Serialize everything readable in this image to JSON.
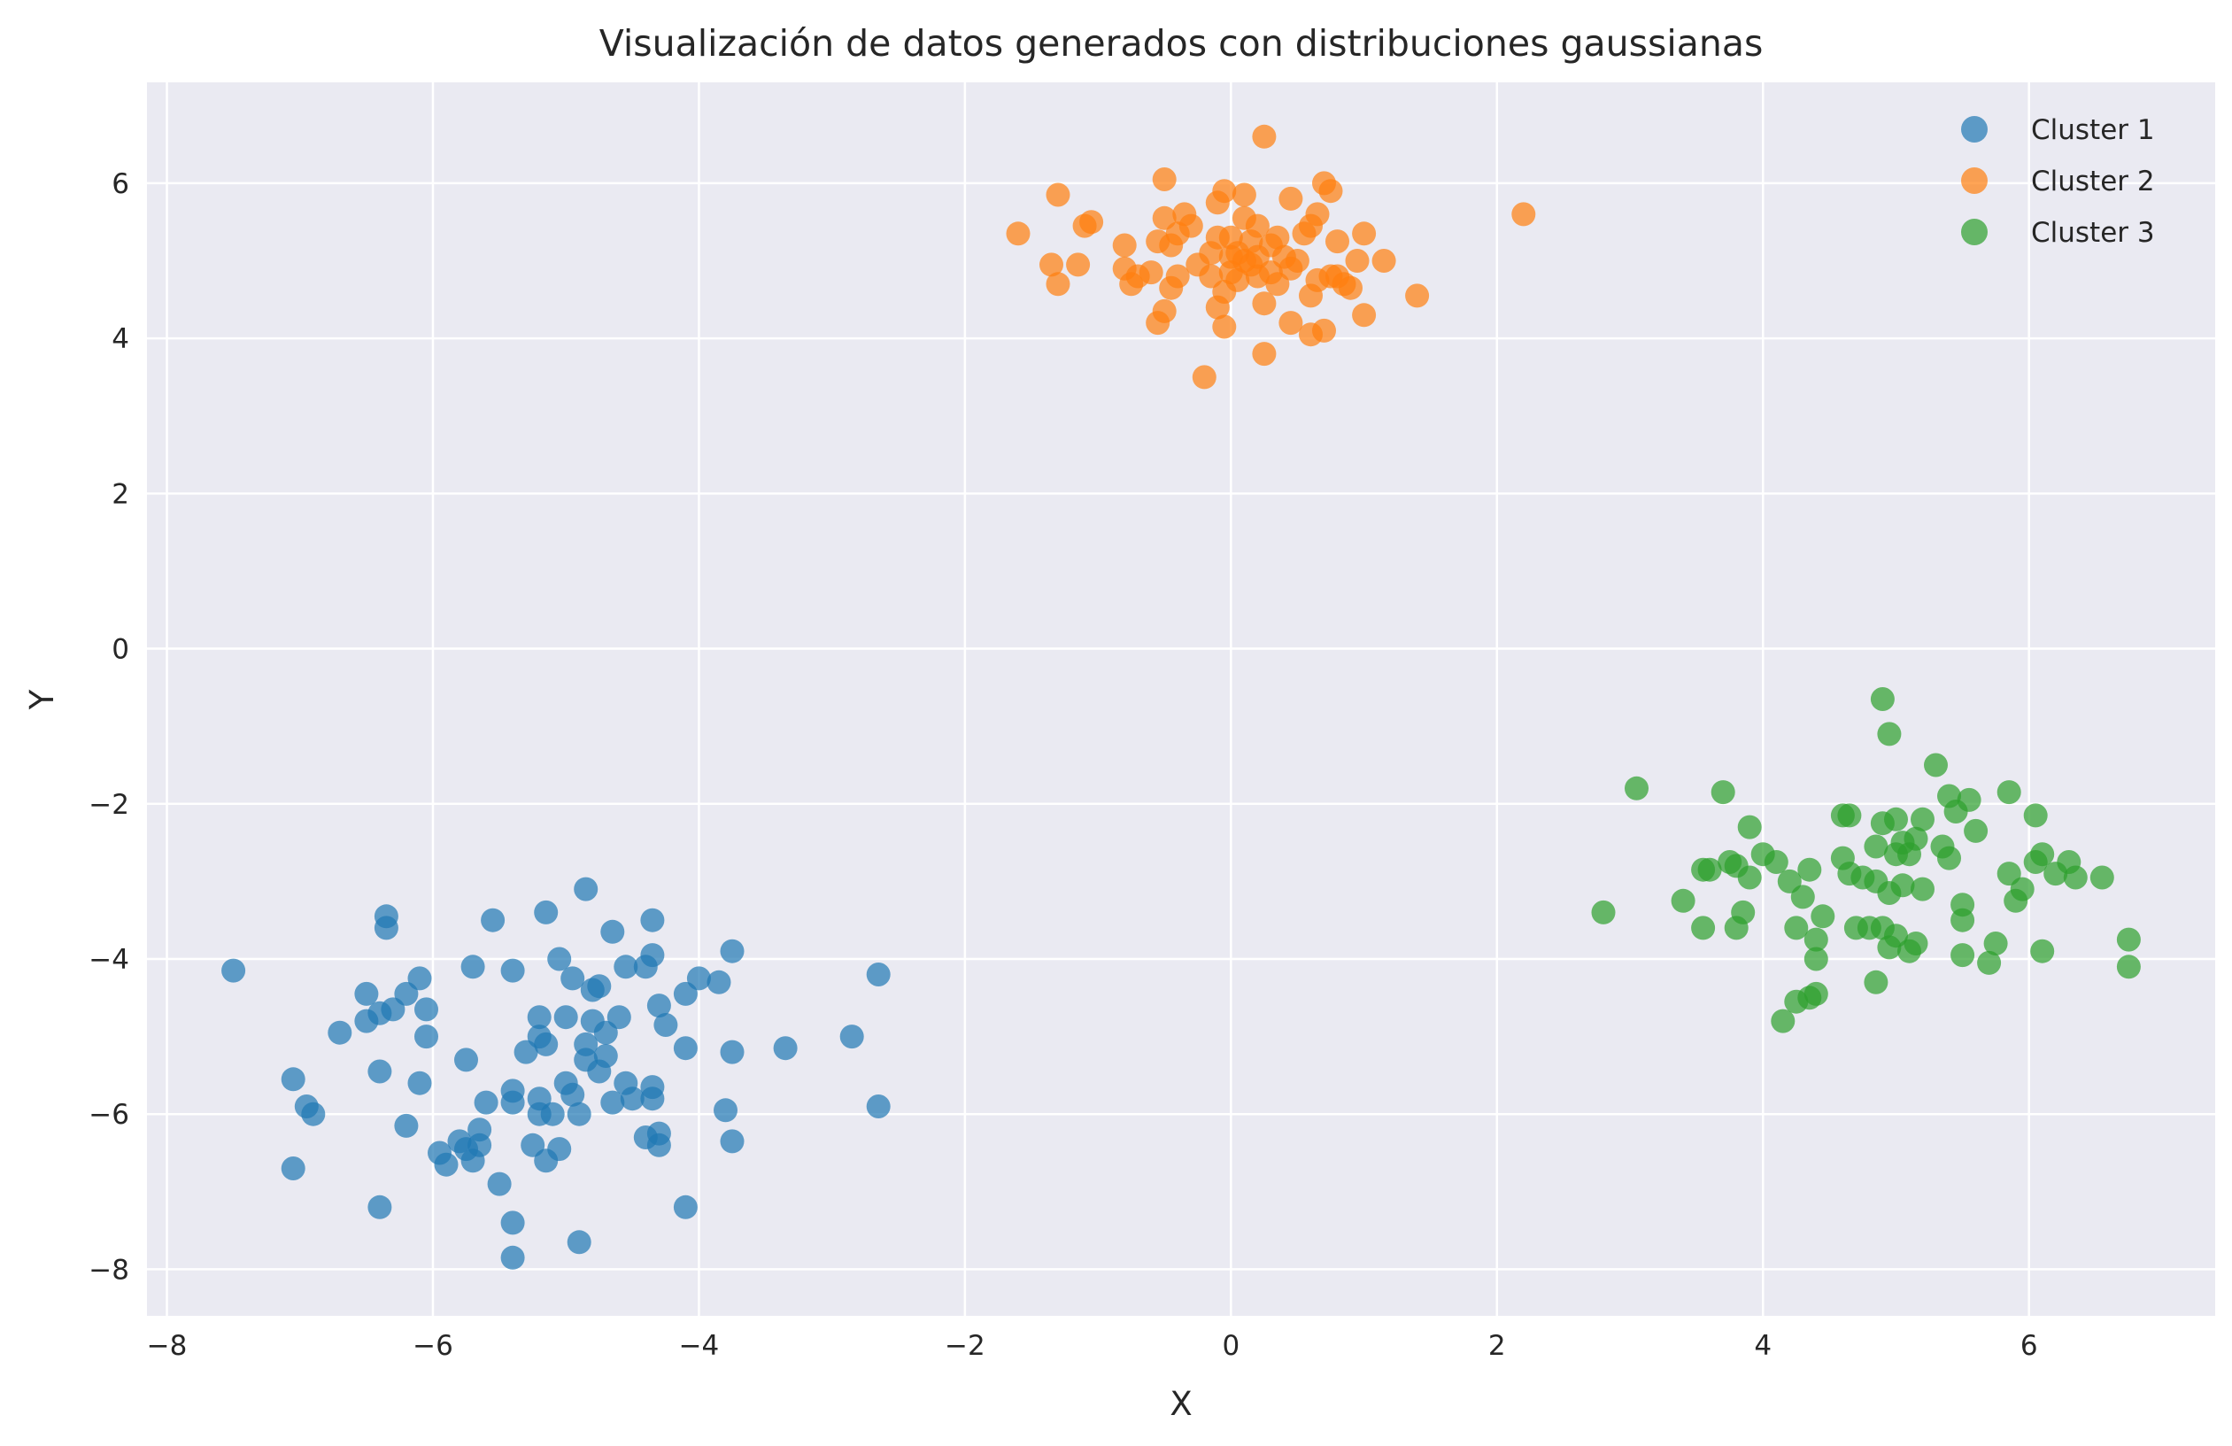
{
  "chart_data": {
    "type": "scatter",
    "title": "Visualización de datos generados con distribuciones gaussianas",
    "xlabel": "X",
    "ylabel": "Y",
    "xlim": [
      -8.15,
      7.4
    ],
    "ylim": [
      -8.6,
      7.3
    ],
    "xticks": [
      -8,
      -6,
      -4,
      -2,
      0,
      2,
      4,
      6
    ],
    "yticks": [
      -8,
      -6,
      -4,
      -2,
      0,
      2,
      4,
      6
    ],
    "xtick_labels": [
      "−8",
      "−6",
      "−4",
      "−2",
      "0",
      "2",
      "4",
      "6"
    ],
    "ytick_labels": [
      "−8",
      "−6",
      "−4",
      "−2",
      "0",
      "2",
      "4",
      "6"
    ],
    "grid": true,
    "legend_position": "top-right",
    "background_color": "#eaeaf2",
    "series": [
      {
        "name": "Cluster 1",
        "color": "#1f77b4",
        "points": [
          [
            -7.5,
            -4.15
          ],
          [
            -7.05,
            -5.55
          ],
          [
            -7.05,
            -6.7
          ],
          [
            -6.95,
            -5.9
          ],
          [
            -6.9,
            -6.0
          ],
          [
            -6.7,
            -4.95
          ],
          [
            -6.5,
            -4.45
          ],
          [
            -6.5,
            -4.8
          ],
          [
            -6.4,
            -4.7
          ],
          [
            -6.4,
            -5.45
          ],
          [
            -6.4,
            -7.2
          ],
          [
            -6.35,
            -3.45
          ],
          [
            -6.35,
            -3.6
          ],
          [
            -6.3,
            -4.65
          ],
          [
            -6.2,
            -6.15
          ],
          [
            -6.2,
            -4.45
          ],
          [
            -6.1,
            -4.25
          ],
          [
            -6.1,
            -5.6
          ],
          [
            -6.05,
            -4.65
          ],
          [
            -6.05,
            -5.0
          ],
          [
            -5.95,
            -6.5
          ],
          [
            -5.9,
            -6.65
          ],
          [
            -5.8,
            -6.35
          ],
          [
            -5.75,
            -6.45
          ],
          [
            -5.75,
            -5.3
          ],
          [
            -5.7,
            -4.1
          ],
          [
            -5.7,
            -6.6
          ],
          [
            -5.65,
            -6.2
          ],
          [
            -5.65,
            -6.4
          ],
          [
            -5.6,
            -5.85
          ],
          [
            -5.55,
            -3.5
          ],
          [
            -5.5,
            -6.9
          ],
          [
            -5.4,
            -4.15
          ],
          [
            -5.4,
            -5.7
          ],
          [
            -5.4,
            -5.85
          ],
          [
            -5.4,
            -7.4
          ],
          [
            -5.4,
            -7.85
          ],
          [
            -5.3,
            -5.2
          ],
          [
            -5.25,
            -6.4
          ],
          [
            -5.2,
            -5.0
          ],
          [
            -5.2,
            -4.75
          ],
          [
            -5.2,
            -5.8
          ],
          [
            -5.2,
            -6.0
          ],
          [
            -5.15,
            -3.4
          ],
          [
            -5.15,
            -5.1
          ],
          [
            -5.15,
            -6.6
          ],
          [
            -5.1,
            -6.0
          ],
          [
            -5.05,
            -4.0
          ],
          [
            -5.05,
            -6.45
          ],
          [
            -5.0,
            -4.75
          ],
          [
            -5.0,
            -5.6
          ],
          [
            -4.95,
            -5.75
          ],
          [
            -4.95,
            -4.25
          ],
          [
            -4.9,
            -7.65
          ],
          [
            -4.9,
            -6.0
          ],
          [
            -4.85,
            -3.1
          ],
          [
            -4.85,
            -5.3
          ],
          [
            -4.85,
            -5.1
          ],
          [
            -4.8,
            -4.8
          ],
          [
            -4.8,
            -4.4
          ],
          [
            -4.75,
            -5.45
          ],
          [
            -4.75,
            -4.35
          ],
          [
            -4.7,
            -4.95
          ],
          [
            -4.7,
            -5.25
          ],
          [
            -4.65,
            -3.65
          ],
          [
            -4.65,
            -5.85
          ],
          [
            -4.6,
            -4.75
          ],
          [
            -4.55,
            -4.1
          ],
          [
            -4.55,
            -5.6
          ],
          [
            -4.5,
            -5.8
          ],
          [
            -4.4,
            -6.3
          ],
          [
            -4.4,
            -4.1
          ],
          [
            -4.35,
            -3.5
          ],
          [
            -4.35,
            -3.95
          ],
          [
            -4.35,
            -5.65
          ],
          [
            -4.35,
            -5.8
          ],
          [
            -4.3,
            -6.25
          ],
          [
            -4.3,
            -6.4
          ],
          [
            -4.3,
            -4.6
          ],
          [
            -4.25,
            -4.85
          ],
          [
            -4.1,
            -4.45
          ],
          [
            -4.1,
            -5.15
          ],
          [
            -4.1,
            -7.2
          ],
          [
            -4.0,
            -4.25
          ],
          [
            -3.85,
            -4.3
          ],
          [
            -3.8,
            -5.95
          ],
          [
            -3.75,
            -3.9
          ],
          [
            -3.75,
            -5.2
          ],
          [
            -3.75,
            -6.35
          ],
          [
            -3.35,
            -5.15
          ],
          [
            -2.85,
            -5.0
          ],
          [
            -2.65,
            -4.2
          ],
          [
            -2.65,
            -5.9
          ]
        ]
      },
      {
        "name": "Cluster 2",
        "color": "#ff7f0e",
        "points": [
          [
            -1.6,
            5.35
          ],
          [
            -1.35,
            4.95
          ],
          [
            -1.3,
            4.7
          ],
          [
            -1.3,
            5.85
          ],
          [
            -1.15,
            4.95
          ],
          [
            -1.1,
            5.45
          ],
          [
            -1.05,
            5.5
          ],
          [
            -0.8,
            5.2
          ],
          [
            -0.8,
            4.9
          ],
          [
            -0.75,
            4.7
          ],
          [
            -0.7,
            4.8
          ],
          [
            -0.6,
            4.85
          ],
          [
            -0.55,
            4.2
          ],
          [
            -0.55,
            5.25
          ],
          [
            -0.5,
            4.35
          ],
          [
            -0.5,
            6.05
          ],
          [
            -0.5,
            5.55
          ],
          [
            -0.45,
            4.65
          ],
          [
            -0.45,
            5.2
          ],
          [
            -0.4,
            5.35
          ],
          [
            -0.4,
            4.8
          ],
          [
            -0.35,
            5.6
          ],
          [
            -0.3,
            5.45
          ],
          [
            -0.25,
            4.95
          ],
          [
            -0.2,
            3.5
          ],
          [
            -0.15,
            5.1
          ],
          [
            -0.15,
            4.8
          ],
          [
            -0.1,
            4.4
          ],
          [
            -0.1,
            5.75
          ],
          [
            -0.1,
            5.3
          ],
          [
            -0.05,
            5.9
          ],
          [
            -0.05,
            4.6
          ],
          [
            -0.05,
            4.15
          ],
          [
            0.0,
            5.05
          ],
          [
            0.0,
            4.85
          ],
          [
            0.0,
            5.3
          ],
          [
            0.05,
            5.1
          ],
          [
            0.05,
            4.75
          ],
          [
            0.1,
            5.85
          ],
          [
            0.1,
            5.55
          ],
          [
            0.1,
            5.0
          ],
          [
            0.15,
            5.25
          ],
          [
            0.15,
            4.95
          ],
          [
            0.2,
            5.45
          ],
          [
            0.2,
            4.8
          ],
          [
            0.2,
            5.05
          ],
          [
            0.25,
            6.6
          ],
          [
            0.25,
            3.8
          ],
          [
            0.25,
            4.45
          ],
          [
            0.3,
            4.85
          ],
          [
            0.3,
            5.2
          ],
          [
            0.35,
            5.3
          ],
          [
            0.35,
            4.7
          ],
          [
            0.4,
            5.05
          ],
          [
            0.45,
            4.9
          ],
          [
            0.45,
            4.2
          ],
          [
            0.45,
            5.8
          ],
          [
            0.5,
            5.0
          ],
          [
            0.55,
            5.35
          ],
          [
            0.6,
            4.55
          ],
          [
            0.6,
            4.05
          ],
          [
            0.6,
            5.45
          ],
          [
            0.65,
            5.6
          ],
          [
            0.65,
            4.75
          ],
          [
            0.7,
            6.0
          ],
          [
            0.7,
            4.1
          ],
          [
            0.75,
            5.9
          ],
          [
            0.75,
            4.8
          ],
          [
            0.8,
            4.8
          ],
          [
            0.8,
            5.25
          ],
          [
            0.85,
            4.7
          ],
          [
            0.9,
            4.65
          ],
          [
            0.95,
            5.0
          ],
          [
            1.0,
            5.35
          ],
          [
            1.0,
            4.3
          ],
          [
            1.15,
            5.0
          ],
          [
            1.4,
            4.55
          ],
          [
            2.2,
            5.6
          ]
        ]
      },
      {
        "name": "Cluster 3",
        "color": "#2ca02c",
        "points": [
          [
            2.8,
            -3.4
          ],
          [
            3.05,
            -1.8
          ],
          [
            3.4,
            -3.25
          ],
          [
            3.55,
            -2.85
          ],
          [
            3.55,
            -3.6
          ],
          [
            3.6,
            -2.85
          ],
          [
            3.7,
            -1.85
          ],
          [
            3.75,
            -2.75
          ],
          [
            3.8,
            -2.8
          ],
          [
            3.8,
            -3.6
          ],
          [
            3.85,
            -3.4
          ],
          [
            3.9,
            -2.3
          ],
          [
            3.9,
            -2.95
          ],
          [
            4.0,
            -2.65
          ],
          [
            4.1,
            -2.75
          ],
          [
            4.15,
            -4.8
          ],
          [
            4.2,
            -3.0
          ],
          [
            4.25,
            -3.6
          ],
          [
            4.25,
            -4.55
          ],
          [
            4.3,
            -3.2
          ],
          [
            4.35,
            -4.5
          ],
          [
            4.35,
            -2.85
          ],
          [
            4.4,
            -3.75
          ],
          [
            4.4,
            -4.0
          ],
          [
            4.4,
            -4.45
          ],
          [
            4.45,
            -3.45
          ],
          [
            4.6,
            -2.7
          ],
          [
            4.6,
            -2.15
          ],
          [
            4.65,
            -2.9
          ],
          [
            4.65,
            -2.15
          ],
          [
            4.7,
            -3.6
          ],
          [
            4.75,
            -2.95
          ],
          [
            4.8,
            -3.6
          ],
          [
            4.85,
            -4.3
          ],
          [
            4.85,
            -3.0
          ],
          [
            4.85,
            -2.55
          ],
          [
            4.9,
            -0.65
          ],
          [
            4.9,
            -2.25
          ],
          [
            4.9,
            -3.6
          ],
          [
            4.95,
            -1.1
          ],
          [
            4.95,
            -3.15
          ],
          [
            4.95,
            -3.85
          ],
          [
            5.0,
            -2.65
          ],
          [
            5.0,
            -2.2
          ],
          [
            5.0,
            -3.7
          ],
          [
            5.05,
            -3.05
          ],
          [
            5.05,
            -2.5
          ],
          [
            5.1,
            -3.9
          ],
          [
            5.1,
            -2.65
          ],
          [
            5.15,
            -2.45
          ],
          [
            5.15,
            -3.8
          ],
          [
            5.2,
            -2.2
          ],
          [
            5.2,
            -3.1
          ],
          [
            5.3,
            -1.5
          ],
          [
            5.35,
            -2.55
          ],
          [
            5.4,
            -1.9
          ],
          [
            5.4,
            -2.7
          ],
          [
            5.45,
            -2.1
          ],
          [
            5.5,
            -3.95
          ],
          [
            5.5,
            -3.3
          ],
          [
            5.5,
            -3.5
          ],
          [
            5.55,
            -1.95
          ],
          [
            5.6,
            -2.35
          ],
          [
            5.7,
            -4.05
          ],
          [
            5.75,
            -3.8
          ],
          [
            5.85,
            -1.85
          ],
          [
            5.85,
            -2.9
          ],
          [
            5.9,
            -3.25
          ],
          [
            5.95,
            -3.1
          ],
          [
            6.05,
            -2.15
          ],
          [
            6.05,
            -2.75
          ],
          [
            6.1,
            -3.9
          ],
          [
            6.1,
            -2.65
          ],
          [
            6.2,
            -2.9
          ],
          [
            6.3,
            -2.75
          ],
          [
            6.35,
            -2.95
          ],
          [
            6.55,
            -2.95
          ],
          [
            6.75,
            -3.75
          ],
          [
            6.75,
            -4.1
          ]
        ]
      }
    ]
  }
}
